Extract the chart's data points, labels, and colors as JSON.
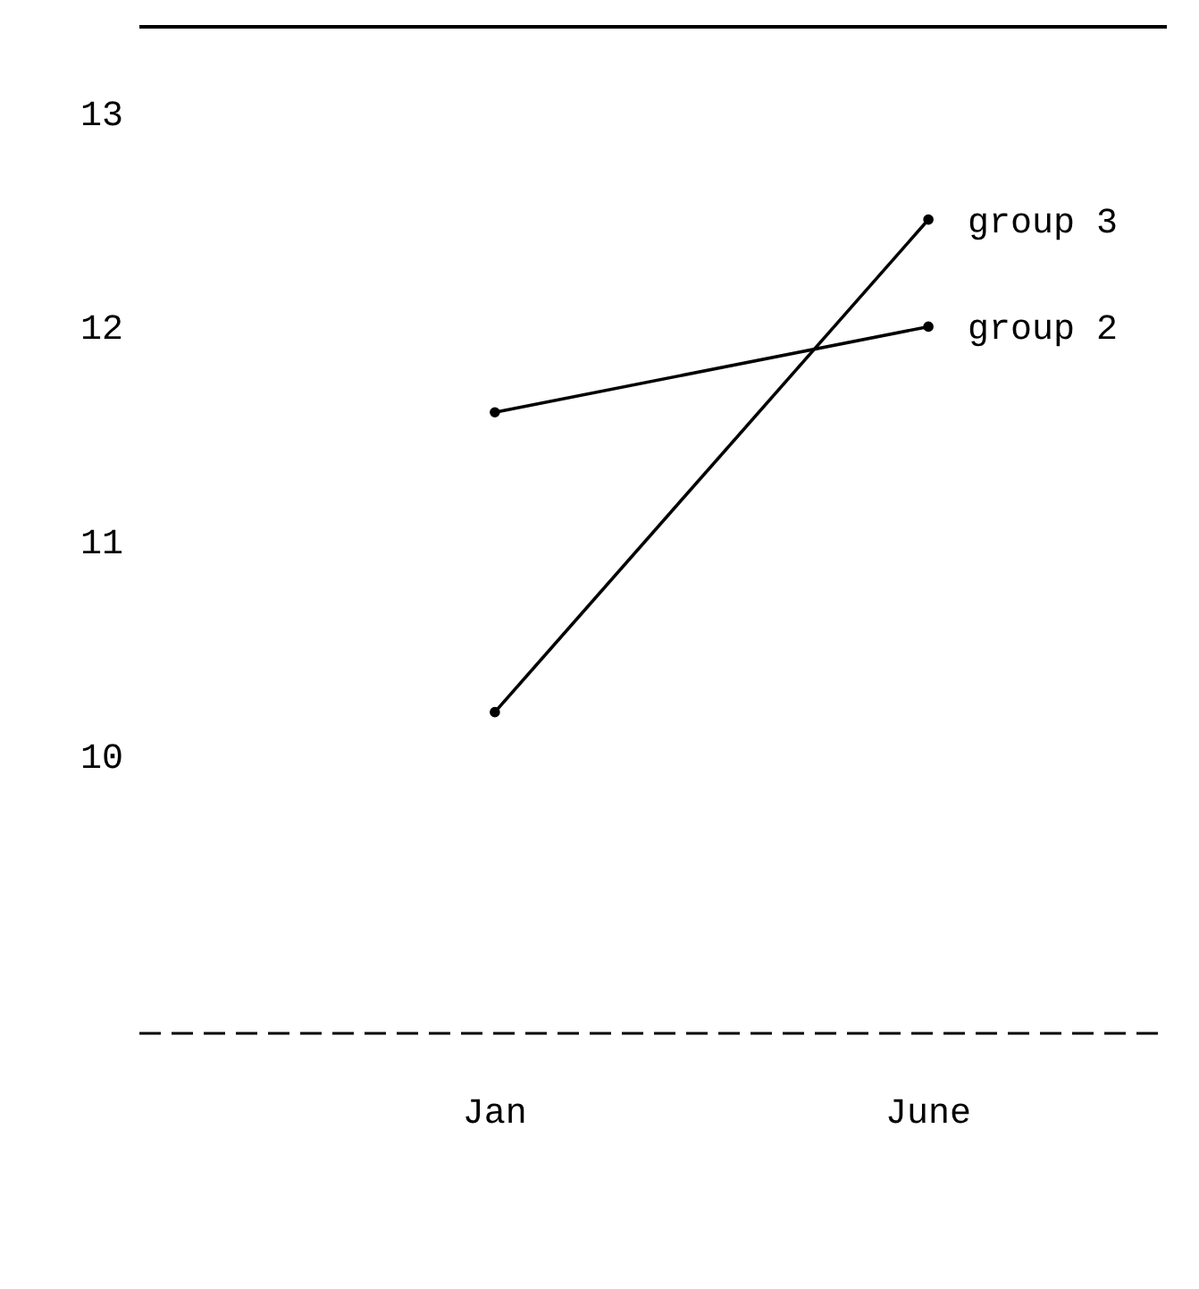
{
  "chart_data": {
    "type": "line",
    "categories": [
      "Jan",
      "June"
    ],
    "series": [
      {
        "name": "group 2",
        "color": "#000000",
        "values": [
          11.6,
          12.0
        ]
      },
      {
        "name": "group 3",
        "color": "#000000",
        "values": [
          10.2,
          12.5
        ]
      }
    ],
    "ylim": [
      8.7,
      13.4
    ],
    "yticks": [
      10,
      11,
      12,
      13
    ],
    "grid": false,
    "legend": false,
    "marker": "circle",
    "line_style": "solid"
  }
}
